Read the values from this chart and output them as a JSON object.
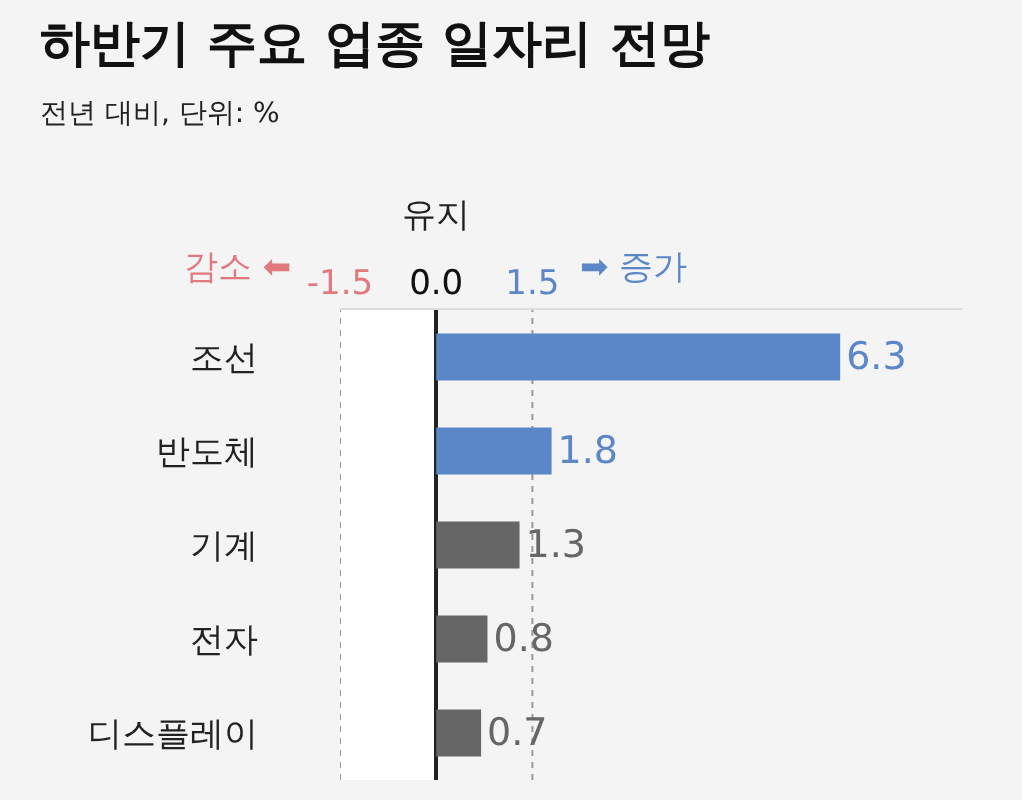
{
  "chart_data": {
    "type": "bar",
    "orientation": "horizontal",
    "title": "하반기 주요 업종 일자리 전망",
    "subtitle": "전년 대비, 단위: %",
    "annotations": [
      "유지",
      "감소 ⬅",
      "➡ 증가"
    ],
    "categories": [
      "조선",
      "반도체",
      "기계",
      "전자",
      "디스플레이"
    ],
    "values": [
      6.3,
      1.8,
      1.3,
      0.8,
      0.7
    ],
    "colors": [
      "#5b86c8",
      "#5b86c8",
      "#666666",
      "#666666",
      "#666666"
    ],
    "xlim": [
      -1.5,
      8.2
    ],
    "xticks": [
      -1.5,
      {
        "value": 0,
        "label": "0.0"
      },
      1.5
    ],
    "bands": [
      {
        "axis": "x",
        "from": -1.5,
        "to": 0,
        "color": "#ffffff"
      }
    ],
    "ref_lines": [
      {
        "axis": "x",
        "value": -1.5,
        "color": "#999999",
        "line_style": "dotted"
      },
      {
        "axis": "x",
        "value": 1.5,
        "color": "#999999",
        "line_style": "dotted"
      }
    ],
    "data_labels": true
  }
}
